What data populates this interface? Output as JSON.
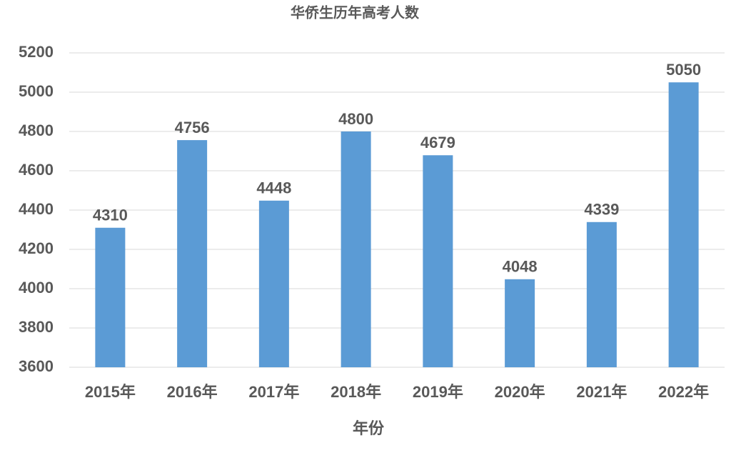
{
  "chart_data": {
    "type": "bar",
    "title": "华侨生历年高考人数",
    "x_label": "年份",
    "categories": [
      "2015年",
      "2016年",
      "2017年",
      "2018年",
      "2019年",
      "2020年",
      "2021年",
      "2022年"
    ],
    "values": [
      4310,
      4756,
      4448,
      4800,
      4679,
      4048,
      4339,
      5050
    ],
    "color": "#5b9bd5",
    "ylim": [
      3600,
      5200
    ],
    "yticks": [
      3600,
      3800,
      4000,
      4200,
      4400,
      4600,
      4800,
      5000,
      5200
    ],
    "grid": true
  }
}
